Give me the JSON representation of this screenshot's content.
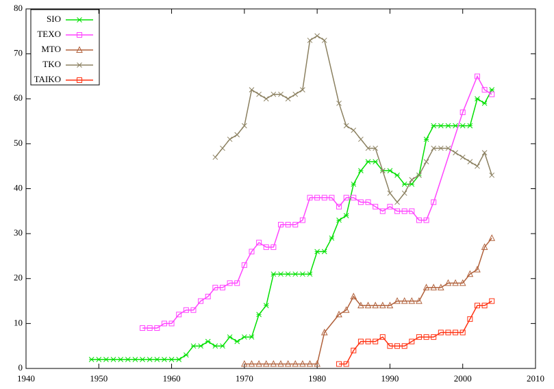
{
  "chart_data": {
    "type": "line",
    "xlim": [
      1940,
      2010
    ],
    "xticks": [
      1940,
      1950,
      1960,
      1970,
      1980,
      1990,
      2000,
      2010
    ],
    "ylim": [
      0,
      80
    ],
    "yticks": [
      0,
      10,
      20,
      30,
      40,
      50,
      60,
      70,
      80
    ],
    "legend": "top-left",
    "series": [
      {
        "name": "SIO",
        "color": "#00e000",
        "marker": "cross",
        "x": [
          1949,
          1950,
          1951,
          1952,
          1953,
          1954,
          1955,
          1956,
          1957,
          1958,
          1959,
          1960,
          1961,
          1962,
          1963,
          1964,
          1965,
          1966,
          1967,
          1968,
          1969,
          1970,
          1971,
          1972,
          1973,
          1974,
          1975,
          1976,
          1977,
          1978,
          1979,
          1980,
          1981,
          1982,
          1983,
          1984,
          1985,
          1986,
          1987,
          1988,
          1989,
          1990,
          1991,
          1992,
          1993,
          1994,
          1995,
          1996,
          1997,
          1998,
          1999,
          2000,
          2001,
          2002,
          2003,
          2004
        ],
        "values": [
          2,
          2,
          2,
          2,
          2,
          2,
          2,
          2,
          2,
          2,
          2,
          2,
          2,
          3,
          5,
          5,
          6,
          5,
          5,
          7,
          6,
          7,
          7,
          12,
          14,
          21,
          21,
          21,
          21,
          21,
          21,
          26,
          26,
          29,
          33,
          34,
          41,
          44,
          46,
          46,
          44,
          44,
          43,
          41,
          41,
          43,
          51,
          54,
          54,
          54,
          54,
          54,
          54,
          60,
          59,
          62
        ]
      },
      {
        "name": "TEXO",
        "color": "#ff44ff",
        "marker": "square",
        "x": [
          1956,
          1957,
          1958,
          1959,
          1960,
          1961,
          1962,
          1963,
          1964,
          1965,
          1966,
          1967,
          1968,
          1969,
          1970,
          1971,
          1972,
          1973,
          1974,
          1975,
          1976,
          1977,
          1978,
          1979,
          1980,
          1981,
          1982,
          1983,
          1984,
          1985,
          1986,
          1987,
          1988,
          1989,
          1990,
          1991,
          1992,
          1993,
          1994,
          1995,
          1996,
          2000,
          2002,
          2003,
          2004
        ],
        "values": [
          9,
          9,
          9,
          10,
          10,
          12,
          13,
          13,
          15,
          16,
          18,
          18,
          19,
          19,
          23,
          26,
          28,
          27,
          27,
          32,
          32,
          32,
          33,
          38,
          38,
          38,
          38,
          36,
          38,
          38,
          37,
          37,
          36,
          35,
          36,
          35,
          35,
          35,
          33,
          33,
          37,
          57,
          65,
          62,
          61
        ]
      },
      {
        "name": "MTO",
        "color": "#b0603a",
        "marker": "triangle",
        "x": [
          1970,
          1971,
          1972,
          1973,
          1974,
          1975,
          1976,
          1977,
          1978,
          1979,
          1980,
          1981,
          1983,
          1984,
          1985,
          1986,
          1987,
          1988,
          1989,
          1990,
          1991,
          1992,
          1993,
          1994,
          1995,
          1996,
          1997,
          1998,
          1999,
          2000,
          2001,
          2002,
          2003,
          2004
        ],
        "values": [
          1,
          1,
          1,
          1,
          1,
          1,
          1,
          1,
          1,
          1,
          1,
          8,
          12,
          13,
          16,
          14,
          14,
          14,
          14,
          14,
          15,
          15,
          15,
          15,
          18,
          18,
          18,
          19,
          19,
          19,
          21,
          22,
          27,
          29
        ]
      },
      {
        "name": "TKO",
        "color": "#8b8060",
        "marker": "x",
        "x": [
          1966,
          1967,
          1968,
          1969,
          1970,
          1971,
          1972,
          1973,
          1974,
          1975,
          1976,
          1977,
          1978,
          1979,
          1980,
          1981,
          1983,
          1984,
          1985,
          1986,
          1987,
          1988,
          1989,
          1990,
          1991,
          1992,
          1993,
          1994,
          1995,
          1996,
          1997,
          1998,
          1999,
          2000,
          2001,
          2002,
          2003,
          2004
        ],
        "values": [
          47,
          49,
          51,
          52,
          54,
          62,
          61,
          60,
          61,
          61,
          60,
          61,
          62,
          73,
          74,
          73,
          59,
          54,
          53,
          51,
          49,
          49,
          44,
          39,
          37,
          39,
          42,
          43,
          46,
          49,
          49,
          49,
          48,
          47,
          46,
          45,
          48,
          43
        ]
      },
      {
        "name": "TAIKO",
        "color": "#ff3010",
        "marker": "square",
        "x": [
          1983,
          1984,
          1985,
          1986,
          1987,
          1988,
          1989,
          1990,
          1991,
          1992,
          1993,
          1994,
          1995,
          1996,
          1997,
          1998,
          1999,
          2000,
          2001,
          2002,
          2003,
          2004
        ],
        "values": [
          1,
          1,
          4,
          6,
          6,
          6,
          7,
          5,
          5,
          5,
          6,
          7,
          7,
          7,
          8,
          8,
          8,
          8,
          11,
          14,
          14,
          15
        ]
      }
    ]
  }
}
